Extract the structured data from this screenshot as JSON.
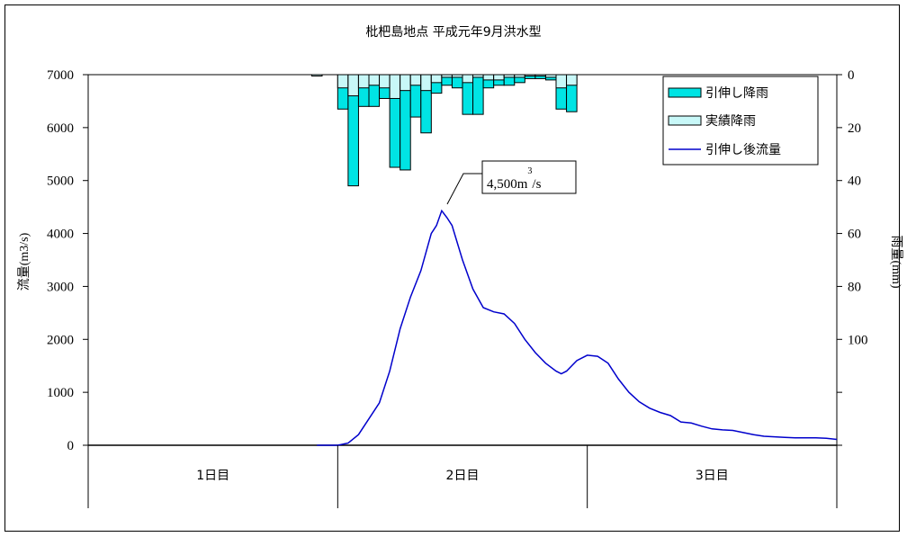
{
  "chart_data": {
    "type": "bar+line",
    "title": "枇杷島地点 平成元年9月洪水型",
    "ylabel_left": "流量(m3/s)",
    "ylabel_right": "雨量(mm)",
    "left_axis": {
      "ylim": [
        0,
        7000
      ],
      "ticks": [
        "0",
        "1000",
        "2000",
        "3000",
        "4000",
        "5000",
        "6000",
        "7000"
      ]
    },
    "right_axis": {
      "ylim": [
        0,
        140
      ],
      "inverted": true,
      "ticks": [
        "0",
        "20",
        "40",
        "60",
        "80",
        "100"
      ]
    },
    "day_labels": [
      "1日目",
      "2日目",
      "3日目"
    ],
    "hours": 72,
    "legend": [
      {
        "key": "extended_rain",
        "label": "引伸し降雨",
        "color": "#00e4e4"
      },
      {
        "key": "observed_rain",
        "label": "実績降雨",
        "color": "#c8f8f8"
      },
      {
        "key": "flow",
        "label": "引伸し後流量",
        "color": "#0000cc"
      }
    ],
    "annotation": {
      "text": "4,500m",
      "superscript": "3",
      "suffix": "/s",
      "value": 4500,
      "hour": 34.8
    },
    "rain_observed": [
      {
        "hour": 21.5,
        "value": 0.5
      },
      {
        "hour": 24,
        "value": 5
      },
      {
        "hour": 25,
        "value": 8
      },
      {
        "hour": 26,
        "value": 5
      },
      {
        "hour": 27,
        "value": 4
      },
      {
        "hour": 28,
        "value": 5
      },
      {
        "hour": 29,
        "value": 9
      },
      {
        "hour": 30,
        "value": 6
      },
      {
        "hour": 31,
        "value": 4
      },
      {
        "hour": 32,
        "value": 6
      },
      {
        "hour": 33,
        "value": 3
      },
      {
        "hour": 34,
        "value": 1
      },
      {
        "hour": 35,
        "value": 1
      },
      {
        "hour": 36,
        "value": 3
      },
      {
        "hour": 37,
        "value": 1
      },
      {
        "hour": 38,
        "value": 2
      },
      {
        "hour": 39,
        "value": 2
      },
      {
        "hour": 40,
        "value": 1
      },
      {
        "hour": 41,
        "value": 1
      },
      {
        "hour": 42,
        "value": 0.5
      },
      {
        "hour": 43,
        "value": 0.5
      },
      {
        "hour": 44,
        "value": 1
      },
      {
        "hour": 45,
        "value": 5
      },
      {
        "hour": 46,
        "value": 4
      }
    ],
    "rain_extended": [
      {
        "hour": 21.5,
        "value": 0.5
      },
      {
        "hour": 24,
        "value": 13
      },
      {
        "hour": 25,
        "value": 42
      },
      {
        "hour": 26,
        "value": 12
      },
      {
        "hour": 27,
        "value": 12
      },
      {
        "hour": 28,
        "value": 9
      },
      {
        "hour": 29,
        "value": 35
      },
      {
        "hour": 30,
        "value": 36
      },
      {
        "hour": 31,
        "value": 16
      },
      {
        "hour": 32,
        "value": 22
      },
      {
        "hour": 33,
        "value": 7
      },
      {
        "hour": 34,
        "value": 4
      },
      {
        "hour": 35,
        "value": 5
      },
      {
        "hour": 36,
        "value": 15
      },
      {
        "hour": 37,
        "value": 15
      },
      {
        "hour": 38,
        "value": 5
      },
      {
        "hour": 39,
        "value": 4
      },
      {
        "hour": 40,
        "value": 4
      },
      {
        "hour": 41,
        "value": 3
      },
      {
        "hour": 42,
        "value": 1.5
      },
      {
        "hour": 43,
        "value": 1.5
      },
      {
        "hour": 44,
        "value": 2
      },
      {
        "hour": 45,
        "value": 13
      },
      {
        "hour": 46,
        "value": 14
      }
    ],
    "flow": {
      "x": [
        22,
        24,
        25,
        26,
        27,
        28,
        29,
        30,
        31,
        32,
        33,
        33.5,
        34,
        34.5,
        35,
        36,
        37,
        38,
        39,
        40,
        41,
        42,
        43,
        44,
        45,
        45.5,
        46,
        47,
        48,
        49,
        50,
        51,
        52,
        53,
        54,
        55,
        56,
        57,
        58,
        59,
        60,
        61,
        62,
        63,
        64,
        65,
        66,
        67,
        68,
        69,
        70,
        71,
        72
      ],
      "y": [
        0,
        0,
        40,
        200,
        500,
        800,
        1400,
        2200,
        2800,
        3300,
        4000,
        4150,
        4430,
        4300,
        4150,
        3500,
        2950,
        2600,
        2520,
        2480,
        2300,
        2000,
        1750,
        1550,
        1400,
        1350,
        1400,
        1600,
        1700,
        1680,
        1550,
        1250,
        1000,
        820,
        700,
        620,
        560,
        440,
        420,
        360,
        310,
        290,
        280,
        240,
        200,
        170,
        160,
        150,
        140,
        140,
        140,
        130,
        110
      ]
    }
  }
}
